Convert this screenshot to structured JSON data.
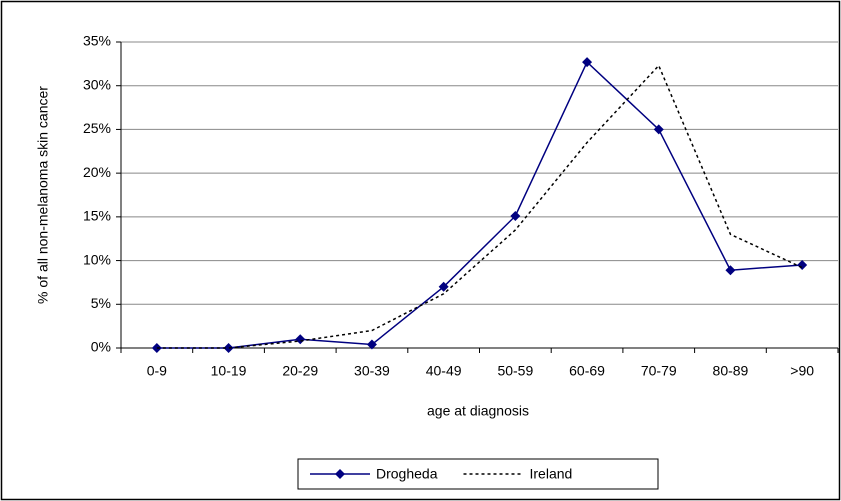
{
  "chart_data": {
    "type": "line",
    "ylabel": "% of all non-melanoma skin cancer",
    "xlabel": "age at diagnosis",
    "categories": [
      "0-9",
      "10-19",
      "20-29",
      "30-39",
      "40-49",
      "50-59",
      "60-69",
      "70-79",
      "80-89",
      ">90"
    ],
    "series": [
      {
        "name": "Drogheda",
        "color": "#000080",
        "style": "solid",
        "marker": "diamond",
        "values": [
          0,
          0,
          1.0,
          0.4,
          7.0,
          15.1,
          32.7,
          25.0,
          8.9,
          9.5
        ]
      },
      {
        "name": "Ireland",
        "color": "#000000",
        "style": "dotted",
        "values": [
          0,
          0,
          0.8,
          2.0,
          6.2,
          13.5,
          23.5,
          32.3,
          13.0,
          9.2
        ]
      }
    ],
    "ylim": [
      0,
      35
    ],
    "yticks": [
      {
        "value": 0,
        "label": "0%"
      },
      {
        "value": 5,
        "label": "5%"
      },
      {
        "value": 10,
        "label": "10%"
      },
      {
        "value": 15,
        "label": "15%"
      },
      {
        "value": 20,
        "label": "20%"
      },
      {
        "value": 25,
        "label": "25%"
      },
      {
        "value": 30,
        "label": "30%"
      },
      {
        "value": 35,
        "label": "35%"
      }
    ],
    "grid": true,
    "legend": "bottom"
  }
}
